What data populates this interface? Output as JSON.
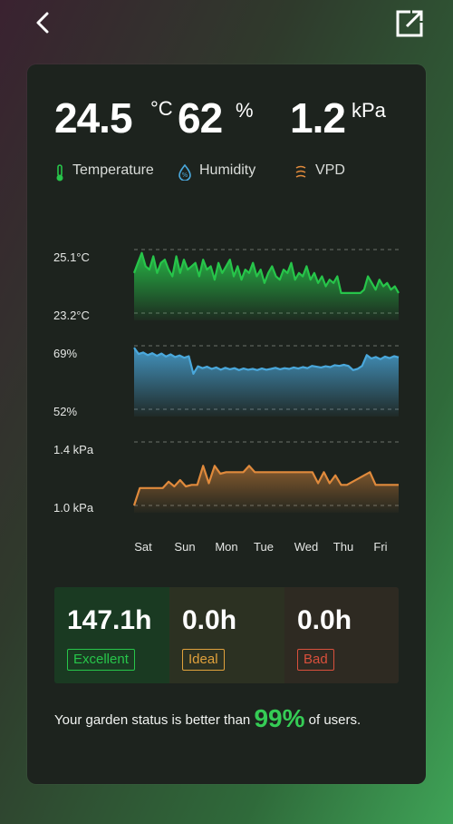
{
  "colors": {
    "temperature": "#27c54a",
    "humidity": "#4aa8dc",
    "vpd": "#e08a3c",
    "excellent": "#27c54a",
    "ideal": "#e0a13c",
    "bad": "#d9503c"
  },
  "header": {
    "back_icon": "chevron-left-icon",
    "share_icon": "external-link-icon"
  },
  "metrics": {
    "temperature": {
      "value": "24.5",
      "unit": "°C"
    },
    "humidity": {
      "value": "62",
      "unit": "%"
    },
    "vpd": {
      "value": "1.2",
      "unit": "kPa"
    }
  },
  "legend": {
    "temperature": {
      "label": "Temperature",
      "icon": "thermometer-icon"
    },
    "humidity": {
      "label": "Humidity",
      "icon": "water-drop-icon"
    },
    "vpd": {
      "label": "VPD",
      "icon": "vpd-waves-icon"
    }
  },
  "chart_data": {
    "type": "line",
    "x_ticks": [
      "Sat",
      "Sun",
      "Mon",
      "Tue",
      "Wed",
      "Thu",
      "Fri"
    ],
    "panels": [
      {
        "name": "Temperature",
        "ylabels": [
          "25.1°C",
          "23.2°C"
        ],
        "ylim": [
          23.2,
          25.1
        ],
        "values": [
          24.4,
          24.7,
          25.0,
          24.6,
          24.5,
          24.9,
          24.4,
          24.7,
          24.8,
          24.5,
          24.3,
          24.9,
          24.4,
          24.8,
          24.5,
          24.6,
          24.7,
          24.3,
          24.8,
          24.5,
          24.6,
          24.2,
          24.7,
          24.4,
          24.6,
          24.8,
          24.3,
          24.6,
          24.2,
          24.5,
          24.4,
          24.7,
          24.3,
          24.5,
          24.1,
          24.4,
          24.6,
          24.3,
          24.2,
          24.5,
          24.4,
          24.7,
          24.2,
          24.4,
          24.3,
          24.6,
          24.2,
          24.4,
          24.1,
          24.3,
          24.0,
          24.2,
          24.1,
          24.3,
          23.8,
          23.8,
          23.8,
          23.8,
          23.8,
          23.8,
          23.9,
          24.3,
          24.1,
          23.9,
          24.2,
          24.0,
          24.1,
          23.9,
          24.0,
          23.8
        ],
        "grid": true
      },
      {
        "name": "Humidity",
        "ylabels": [
          "69%",
          "52%"
        ],
        "ylim": [
          52,
          69
        ],
        "values": [
          68.5,
          66.8,
          67.2,
          66.5,
          67.0,
          66.3,
          66.9,
          66.1,
          66.7,
          66.0,
          66.4,
          65.8,
          66.2,
          61.5,
          63.5,
          63.0,
          63.4,
          62.8,
          63.2,
          62.6,
          63.1,
          62.7,
          63.0,
          62.5,
          62.9,
          62.6,
          62.8,
          62.5,
          62.9,
          62.6,
          62.8,
          63.1,
          62.7,
          63.0,
          62.8,
          63.2,
          62.9,
          63.3,
          63.0,
          63.6,
          63.4,
          63.2,
          63.5,
          63.3,
          63.8,
          63.6,
          63.9,
          63.6,
          62.5,
          62.8,
          63.6,
          66.5,
          65.6,
          66.0,
          65.4,
          66.1,
          65.7,
          66.2,
          65.9
        ],
        "grid": true
      },
      {
        "name": "VPD",
        "ylabels": [
          "1.4 kPa",
          "1.0 kPa"
        ],
        "ylim": [
          1.0,
          1.4
        ],
        "values": [
          1.0,
          1.11,
          1.11,
          1.11,
          1.11,
          1.11,
          1.15,
          1.12,
          1.16,
          1.12,
          1.13,
          1.13,
          1.25,
          1.14,
          1.25,
          1.2,
          1.21,
          1.21,
          1.21,
          1.21,
          1.25,
          1.21,
          1.21,
          1.21,
          1.21,
          1.21,
          1.21,
          1.21,
          1.21,
          1.21,
          1.21,
          1.21,
          1.14,
          1.21,
          1.14,
          1.19,
          1.13,
          1.13,
          1.15,
          1.17,
          1.19,
          1.21,
          1.13,
          1.13,
          1.13,
          1.13,
          1.13
        ],
        "grid": true
      }
    ]
  },
  "stats": [
    {
      "hours": "147.1h",
      "label": "Excellent"
    },
    {
      "hours": "0.0h",
      "label": "Ideal"
    },
    {
      "hours": "0.0h",
      "label": "Bad"
    }
  ],
  "status": {
    "prefix": "Your garden status is better than ",
    "percent": "99%",
    "suffix": " of users."
  }
}
